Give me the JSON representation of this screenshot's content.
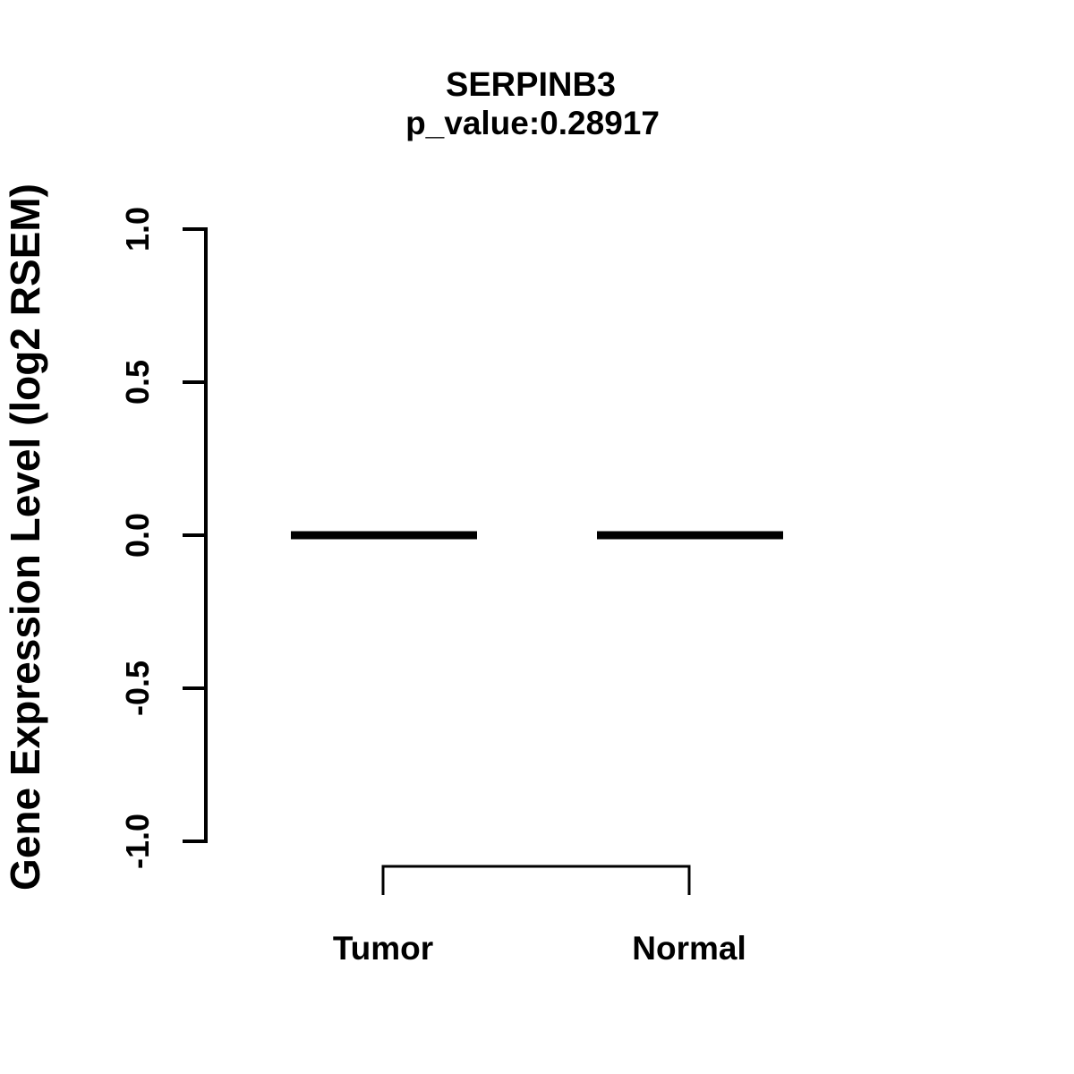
{
  "figure": {
    "title": "SERPINB3",
    "subtitle": "p_value:0.28917",
    "y_axis": {
      "label": "Gene Expression Level (log2 RSEM)",
      "tick_labels": [
        "1.0",
        "0.5",
        "0.0",
        "-0.5",
        "-1.0"
      ]
    },
    "x_axis": {
      "categories": [
        "Tumor",
        "Normal"
      ]
    },
    "colors": {
      "foreground": "#000000",
      "background": "#ffffff"
    }
  },
  "chart_data": {
    "type": "boxplot",
    "title": "SERPINB3",
    "subtitle": "p_value:0.28917",
    "gene": "SERPINB3",
    "p_value": 0.28917,
    "categories": [
      "Tumor",
      "Normal"
    ],
    "series": [
      {
        "name": "Tumor",
        "median": 0.0,
        "q1": 0.0,
        "q3": 0.0,
        "whisker_low": 0.0,
        "whisker_high": 0.0
      },
      {
        "name": "Normal",
        "median": 0.0,
        "q1": 0.0,
        "q3": 0.0,
        "whisker_low": 0.0,
        "whisker_high": 0.0
      }
    ],
    "xlabel": "",
    "ylabel": "Gene Expression Level (log2 RSEM)",
    "ylim": [
      -1.0,
      1.0
    ],
    "yticks": [
      1.0,
      0.5,
      0.0,
      -0.5,
      -1.0
    ],
    "grid": false,
    "legend": "none",
    "annotations": [
      "comparison bracket connecting Tumor and Normal below the plot"
    ]
  }
}
